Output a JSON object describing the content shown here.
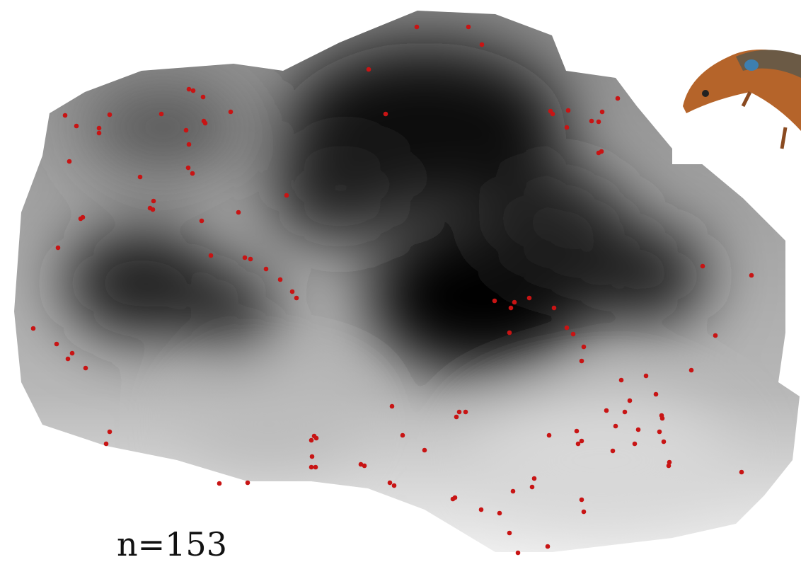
{
  "label": "n=153"
}
